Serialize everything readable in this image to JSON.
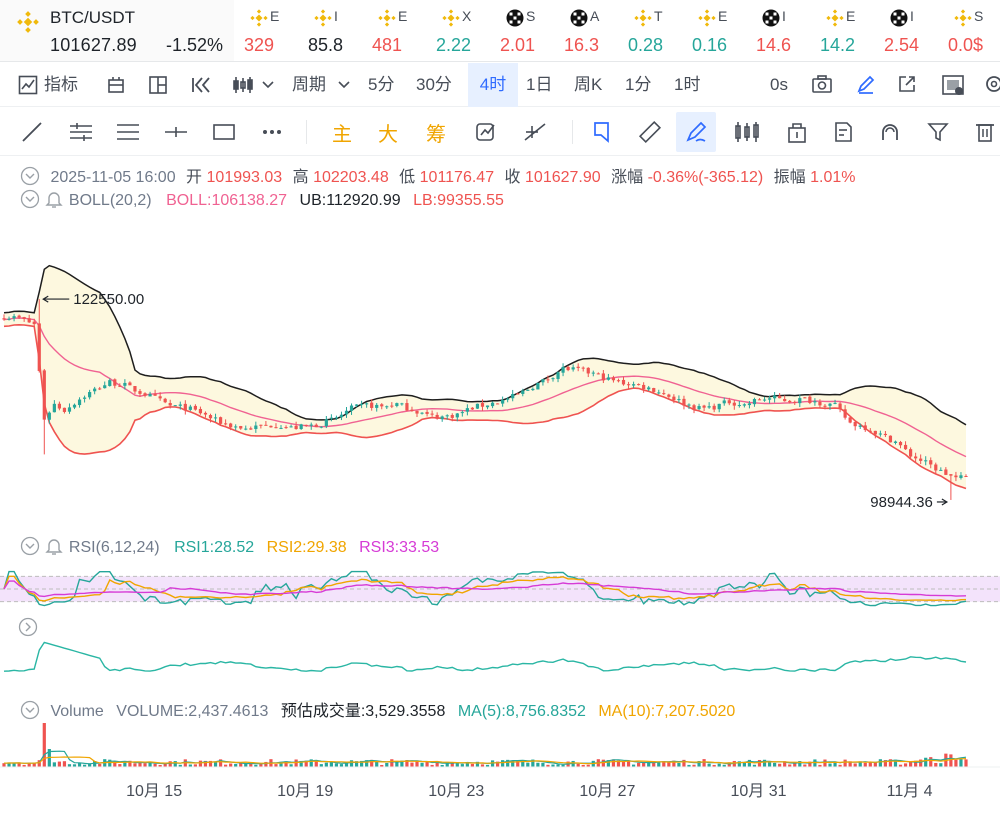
{
  "ticker": {
    "main": {
      "symbol": "BTC/USDT",
      "price": "101627.89",
      "change": "-1.52%"
    },
    "items": [
      {
        "icon": "bnb-icon",
        "sym": "E",
        "val": "329",
        "trend": "down"
      },
      {
        "icon": "bnb-icon",
        "sym": "I",
        "val": "85.8",
        "trend": "neu"
      },
      {
        "icon": "bnb-icon",
        "sym": "E",
        "val": "481",
        "trend": "down"
      },
      {
        "icon": "bnb-icon",
        "sym": "X",
        "val": "2.22",
        "trend": "up"
      },
      {
        "icon": "okx-icon",
        "sym": "S",
        "val": "2.01",
        "trend": "down"
      },
      {
        "icon": "okx-icon",
        "sym": "A",
        "val": "16.3",
        "trend": "down"
      },
      {
        "icon": "bnb-icon",
        "sym": "T",
        "val": "0.28",
        "trend": "up"
      },
      {
        "icon": "bnb-icon",
        "sym": "E",
        "val": "0.16",
        "trend": "up"
      },
      {
        "icon": "okx-icon",
        "sym": "I",
        "val": "14.6",
        "trend": "down"
      },
      {
        "icon": "bnb-icon",
        "sym": "E",
        "val": "14.2",
        "trend": "up"
      },
      {
        "icon": "okx-icon",
        "sym": "I",
        "val": "2.54",
        "trend": "down"
      },
      {
        "icon": "bnb-icon",
        "sym": "S",
        "val": "0.0$",
        "trend": "down"
      }
    ]
  },
  "intervals": {
    "indicator_label": "指标",
    "period_label": "周期",
    "items": [
      "5分",
      "30分",
      "4时",
      "1日",
      "周K",
      "1分",
      "1时"
    ],
    "active": "4时",
    "countdown": "0s"
  },
  "drawing_tools": {
    "main_label": "主",
    "big_label": "大",
    "chip_label": "筹"
  },
  "ohlc": {
    "date": "2025-11-05 16:00",
    "open_label": "开",
    "open": "101993.03",
    "high_label": "高",
    "high": "102203.48",
    "low_label": "低",
    "low": "101176.47",
    "close_label": "收",
    "close": "101627.90",
    "change_label": "涨幅",
    "change": "-0.36%(-365.12)",
    "amp_label": "振幅",
    "amp": "1.01%"
  },
  "boll": {
    "name": "BOLL(20,2)",
    "mid": "BOLL:106138.27",
    "ub": "UB:112920.99",
    "lb": "LB:99355.55"
  },
  "rsi": {
    "name": "RSI(6,12,24)",
    "rsi1": "RSI1:28.52",
    "rsi2": "RSI2:29.38",
    "rsi3": "RSI3:33.53"
  },
  "volume": {
    "name": "Volume",
    "vol": "VOLUME:2,437.4613",
    "est": "预估成交量:3,529.3558",
    "ma5": "MA(5):8,756.8352",
    "ma10": "MA(10):7,207.5020"
  },
  "colors": {
    "up": "#26a69a",
    "down": "#ef5350",
    "boll_mid": "#f06292",
    "boll_band": "#1e1e1e",
    "accent": "#2f6bff",
    "tool_orange": "#f0a500"
  },
  "chart_data": {
    "type": "candlestick",
    "series_name": "BTC/USDT",
    "interval": "4时",
    "x_ticks": [
      "10月 15",
      "10月 19",
      "10月 23",
      "10月 27",
      "10月 31",
      "11月 4"
    ],
    "price_markers": {
      "high_mark": "122550.00",
      "low_mark": "98944.36"
    },
    "close_path": [
      [
        0,
        120500
      ],
      [
        3,
        120300
      ],
      [
        6,
        119600
      ],
      [
        8,
        108500
      ],
      [
        10,
        110200
      ],
      [
        12,
        109500
      ],
      [
        15,
        110800
      ],
      [
        18,
        111900
      ],
      [
        21,
        112800
      ],
      [
        24,
        112400
      ],
      [
        27,
        111600
      ],
      [
        30,
        110900
      ],
      [
        33,
        110000
      ],
      [
        36,
        109800
      ],
      [
        39,
        109200
      ],
      [
        42,
        108300
      ],
      [
        45,
        107700
      ],
      [
        48,
        107300
      ],
      [
        51,
        107600
      ],
      [
        54,
        107800
      ],
      [
        57,
        107400
      ],
      [
        60,
        107600
      ],
      [
        63,
        107900
      ],
      [
        66,
        108600
      ],
      [
        69,
        109700
      ],
      [
        72,
        110100
      ],
      [
        75,
        109900
      ],
      [
        78,
        110200
      ],
      [
        81,
        109600
      ],
      [
        84,
        108900
      ],
      [
        87,
        108700
      ],
      [
        90,
        109000
      ],
      [
        93,
        109800
      ],
      [
        96,
        110200
      ],
      [
        99,
        110600
      ],
      [
        102,
        111300
      ],
      [
        105,
        112300
      ],
      [
        108,
        113200
      ],
      [
        111,
        114400
      ],
      [
        114,
        114200
      ],
      [
        117,
        113800
      ],
      [
        120,
        113100
      ],
      [
        123,
        112700
      ],
      [
        126,
        112400
      ],
      [
        129,
        111900
      ],
      [
        132,
        111200
      ],
      [
        135,
        110300
      ],
      [
        138,
        109700
      ],
      [
        141,
        109900
      ],
      [
        144,
        110500
      ],
      [
        147,
        110100
      ],
      [
        150,
        110800
      ],
      [
        153,
        110900
      ],
      [
        156,
        110600
      ],
      [
        159,
        110800
      ],
      [
        162,
        110400
      ],
      [
        165,
        110000
      ],
      [
        168,
        108000
      ],
      [
        171,
        107500
      ],
      [
        174,
        106600
      ],
      [
        177,
        105800
      ],
      [
        180,
        104200
      ],
      [
        183,
        103300
      ],
      [
        186,
        102300
      ],
      [
        189,
        101500
      ],
      [
        191,
        101600
      ]
    ],
    "rsi_panel": {
      "levels": [
        70,
        50,
        30
      ]
    },
    "volume_panel": {
      "note": ""
    }
  }
}
